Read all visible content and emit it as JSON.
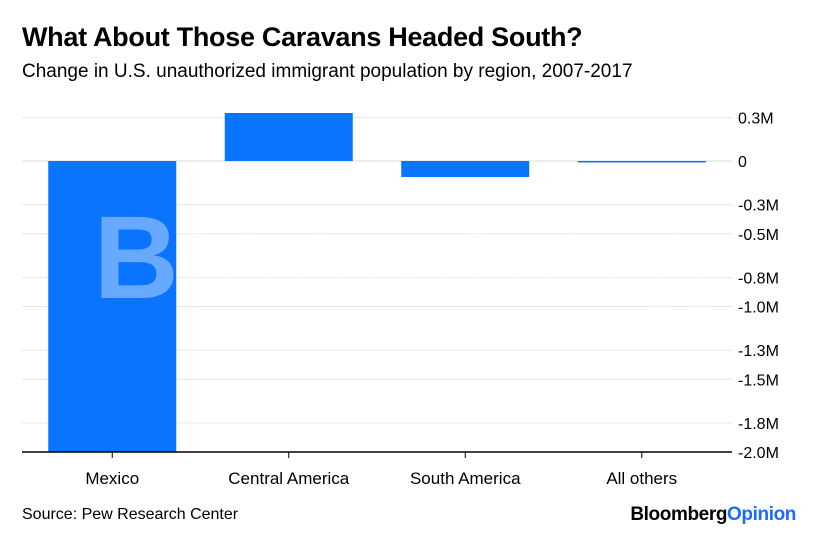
{
  "title": "What About Those Caravans Headed South?",
  "subtitle": "Change in U.S. unauthorized immigrant population by region, 2007-2017",
  "source": "Source: Pew Research Center",
  "brand": {
    "main": "Bloomberg",
    "accent": "Opinion"
  },
  "watermark": "Bloomberg",
  "colors": {
    "bar": "#0a74ff",
    "accent": "#1a6bff",
    "grid": "#e6e6e6",
    "baseline": "#000000"
  },
  "chart_data": {
    "type": "bar",
    "categories": [
      "Mexico",
      "Central America",
      "South America",
      "All others"
    ],
    "values": [
      -2.0,
      0.33,
      -0.11,
      -0.01
    ],
    "ylim": [
      -2.0,
      0.4
    ],
    "yticks": [
      0.3,
      0,
      -0.3,
      -0.5,
      -0.8,
      -1.0,
      -1.3,
      -1.5,
      -1.8,
      -2.0
    ],
    "ytick_labels": [
      "0.3M",
      "0",
      "-0.3M",
      "-0.5M",
      "-0.8M",
      "-1.0M",
      "-1.3M",
      "-1.5M",
      "-1.8M",
      "-2.0M"
    ],
    "grid": true,
    "y_axis_side": "right"
  }
}
